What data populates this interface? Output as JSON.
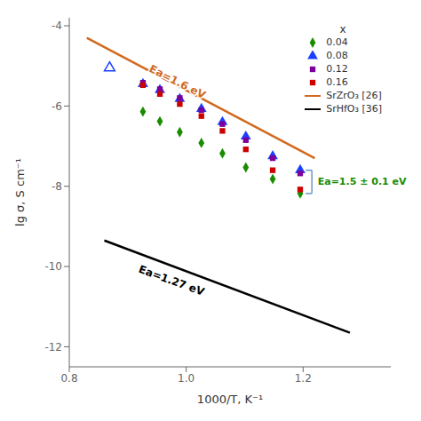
{
  "chart_data": {
    "type": "scatter",
    "xlabel": "1000/T, K⁻¹",
    "ylabel": "lg σ, S cm⁻¹",
    "xlim": [
      0.8,
      1.35
    ],
    "ylim": [
      -12.5,
      -3.8
    ],
    "xticks": [
      0.8,
      {
        "value": 1.0,
        "label": "1.0"
      },
      1.2
    ],
    "yticks": [
      -12,
      -10,
      -8,
      -6,
      -4
    ],
    "grid": false,
    "legend": "upper right",
    "legend_title": "x",
    "series": [
      {
        "name": "0.04",
        "color": "#1a8c00",
        "marker": "diamond",
        "x": [
          0.926,
          0.955,
          0.989,
          1.026,
          1.062,
          1.102,
          1.148,
          1.195
        ],
        "values": [
          -6.14,
          -6.38,
          -6.65,
          -6.92,
          -7.18,
          -7.53,
          -7.82,
          -8.18
        ]
      },
      {
        "name": "0.08",
        "color": "#1a40ff",
        "marker": "triangle_open",
        "x": [
          0.869
        ],
        "values": [
          -5.05
        ]
      },
      {
        "name": "0.08",
        "color": "#1a40ff",
        "marker": "triangle",
        "x": [
          0.926,
          0.955,
          0.989,
          1.026,
          1.062,
          1.102,
          1.148,
          1.195
        ],
        "values": [
          -5.45,
          -5.6,
          -5.82,
          -6.07,
          -6.4,
          -6.76,
          -7.25,
          -7.6
        ]
      },
      {
        "name": "0.12",
        "color": "#7b0099",
        "marker": "square",
        "x": [
          0.926,
          0.955,
          0.989,
          1.026,
          1.062,
          1.102,
          1.148,
          1.195
        ],
        "values": [
          -5.42,
          -5.58,
          -5.8,
          -6.1,
          -6.45,
          -6.85,
          -7.3,
          -7.68
        ]
      },
      {
        "name": "0.16",
        "color": "#cc0000",
        "marker": "square",
        "x": [
          0.926,
          0.955,
          0.989,
          1.026,
          1.062,
          1.102,
          1.148,
          1.195
        ],
        "values": [
          -5.48,
          -5.7,
          -5.95,
          -6.25,
          -6.62,
          -7.08,
          -7.6,
          -8.08
        ]
      },
      {
        "name": "SrZrO₃ [26]",
        "type": "line",
        "color": "#d2691e",
        "x": [
          0.83,
          1.22
        ],
        "values": [
          -4.3,
          -7.3
        ]
      },
      {
        "name": "SrHfO₃ [36]",
        "type": "line",
        "color": "#000000",
        "x": [
          0.86,
          1.28
        ],
        "values": [
          -9.35,
          -11.65
        ]
      }
    ],
    "annotations": [
      {
        "text": "Ea=1.6 eV",
        "x": 0.985,
        "y": -5.4,
        "color": "#d2691e"
      },
      {
        "text": "Ea=1.27 eV",
        "x": 0.975,
        "y": -10.35,
        "color": "#000000"
      },
      {
        "text": "Ea=1.5 ± 0.1 eV",
        "x": 1.225,
        "y": -7.88,
        "color": "#1a8c00"
      }
    ],
    "bracket": {
      "x": 1.215,
      "y_top": -7.6,
      "y_bottom": -8.18,
      "color": "#6699cc"
    }
  }
}
